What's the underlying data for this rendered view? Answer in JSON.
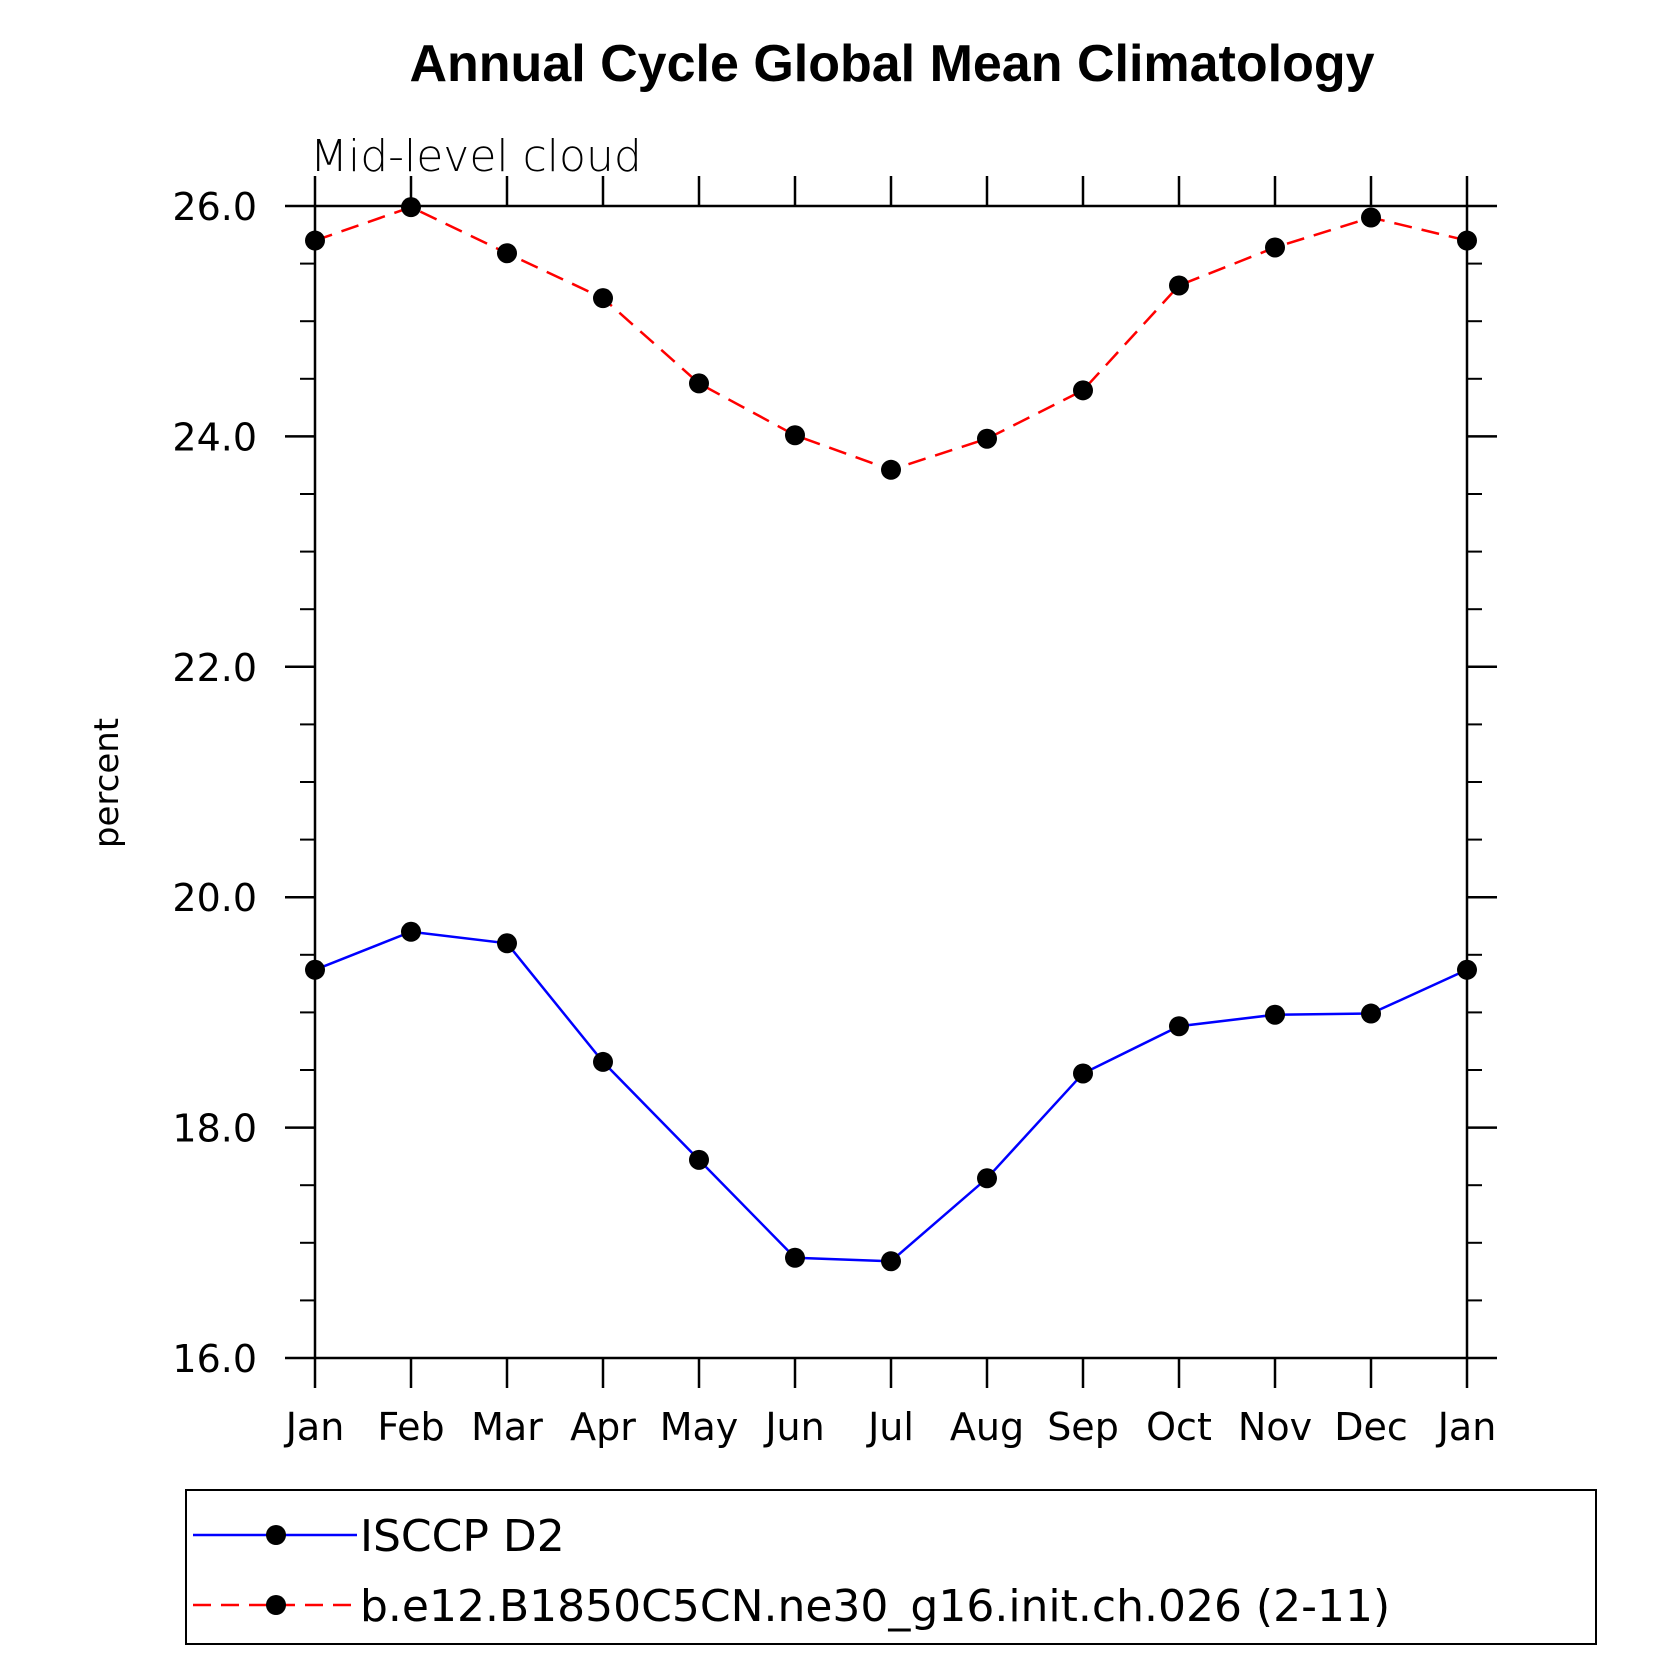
{
  "chart_data": {
    "type": "line",
    "title": "Annual Cycle Global Mean Climatology",
    "subtitle": "Mid-level cloud",
    "xlabel": "",
    "ylabel": "percent",
    "categories": [
      "Jan",
      "Feb",
      "Mar",
      "Apr",
      "May",
      "Jun",
      "Jul",
      "Aug",
      "Sep",
      "Oct",
      "Nov",
      "Dec",
      "Jan"
    ],
    "ylim": [
      16.0,
      26.0
    ],
    "yticks": [
      "16.0",
      "18.0",
      "20.0",
      "22.0",
      "24.0",
      "26.0"
    ],
    "grid": false,
    "legend_position": "bottom",
    "series": [
      {
        "name": "ISCCP D2",
        "color": "#0000ff",
        "line_style": "solid",
        "marker": "filled-circle",
        "values": [
          19.37,
          19.7,
          19.6,
          18.57,
          17.72,
          16.87,
          16.84,
          17.56,
          18.47,
          18.88,
          18.98,
          18.99,
          19.37
        ]
      },
      {
        "name": "b.e12.B1850C5CN.ne30_g16.init.ch.026 (2-11)",
        "color": "#ff0000",
        "line_style": "dashed",
        "marker": "filled-circle",
        "values": [
          25.7,
          25.99,
          25.59,
          25.2,
          24.46,
          24.01,
          23.71,
          23.98,
          24.4,
          25.31,
          25.64,
          25.9,
          25.7
        ]
      }
    ]
  }
}
